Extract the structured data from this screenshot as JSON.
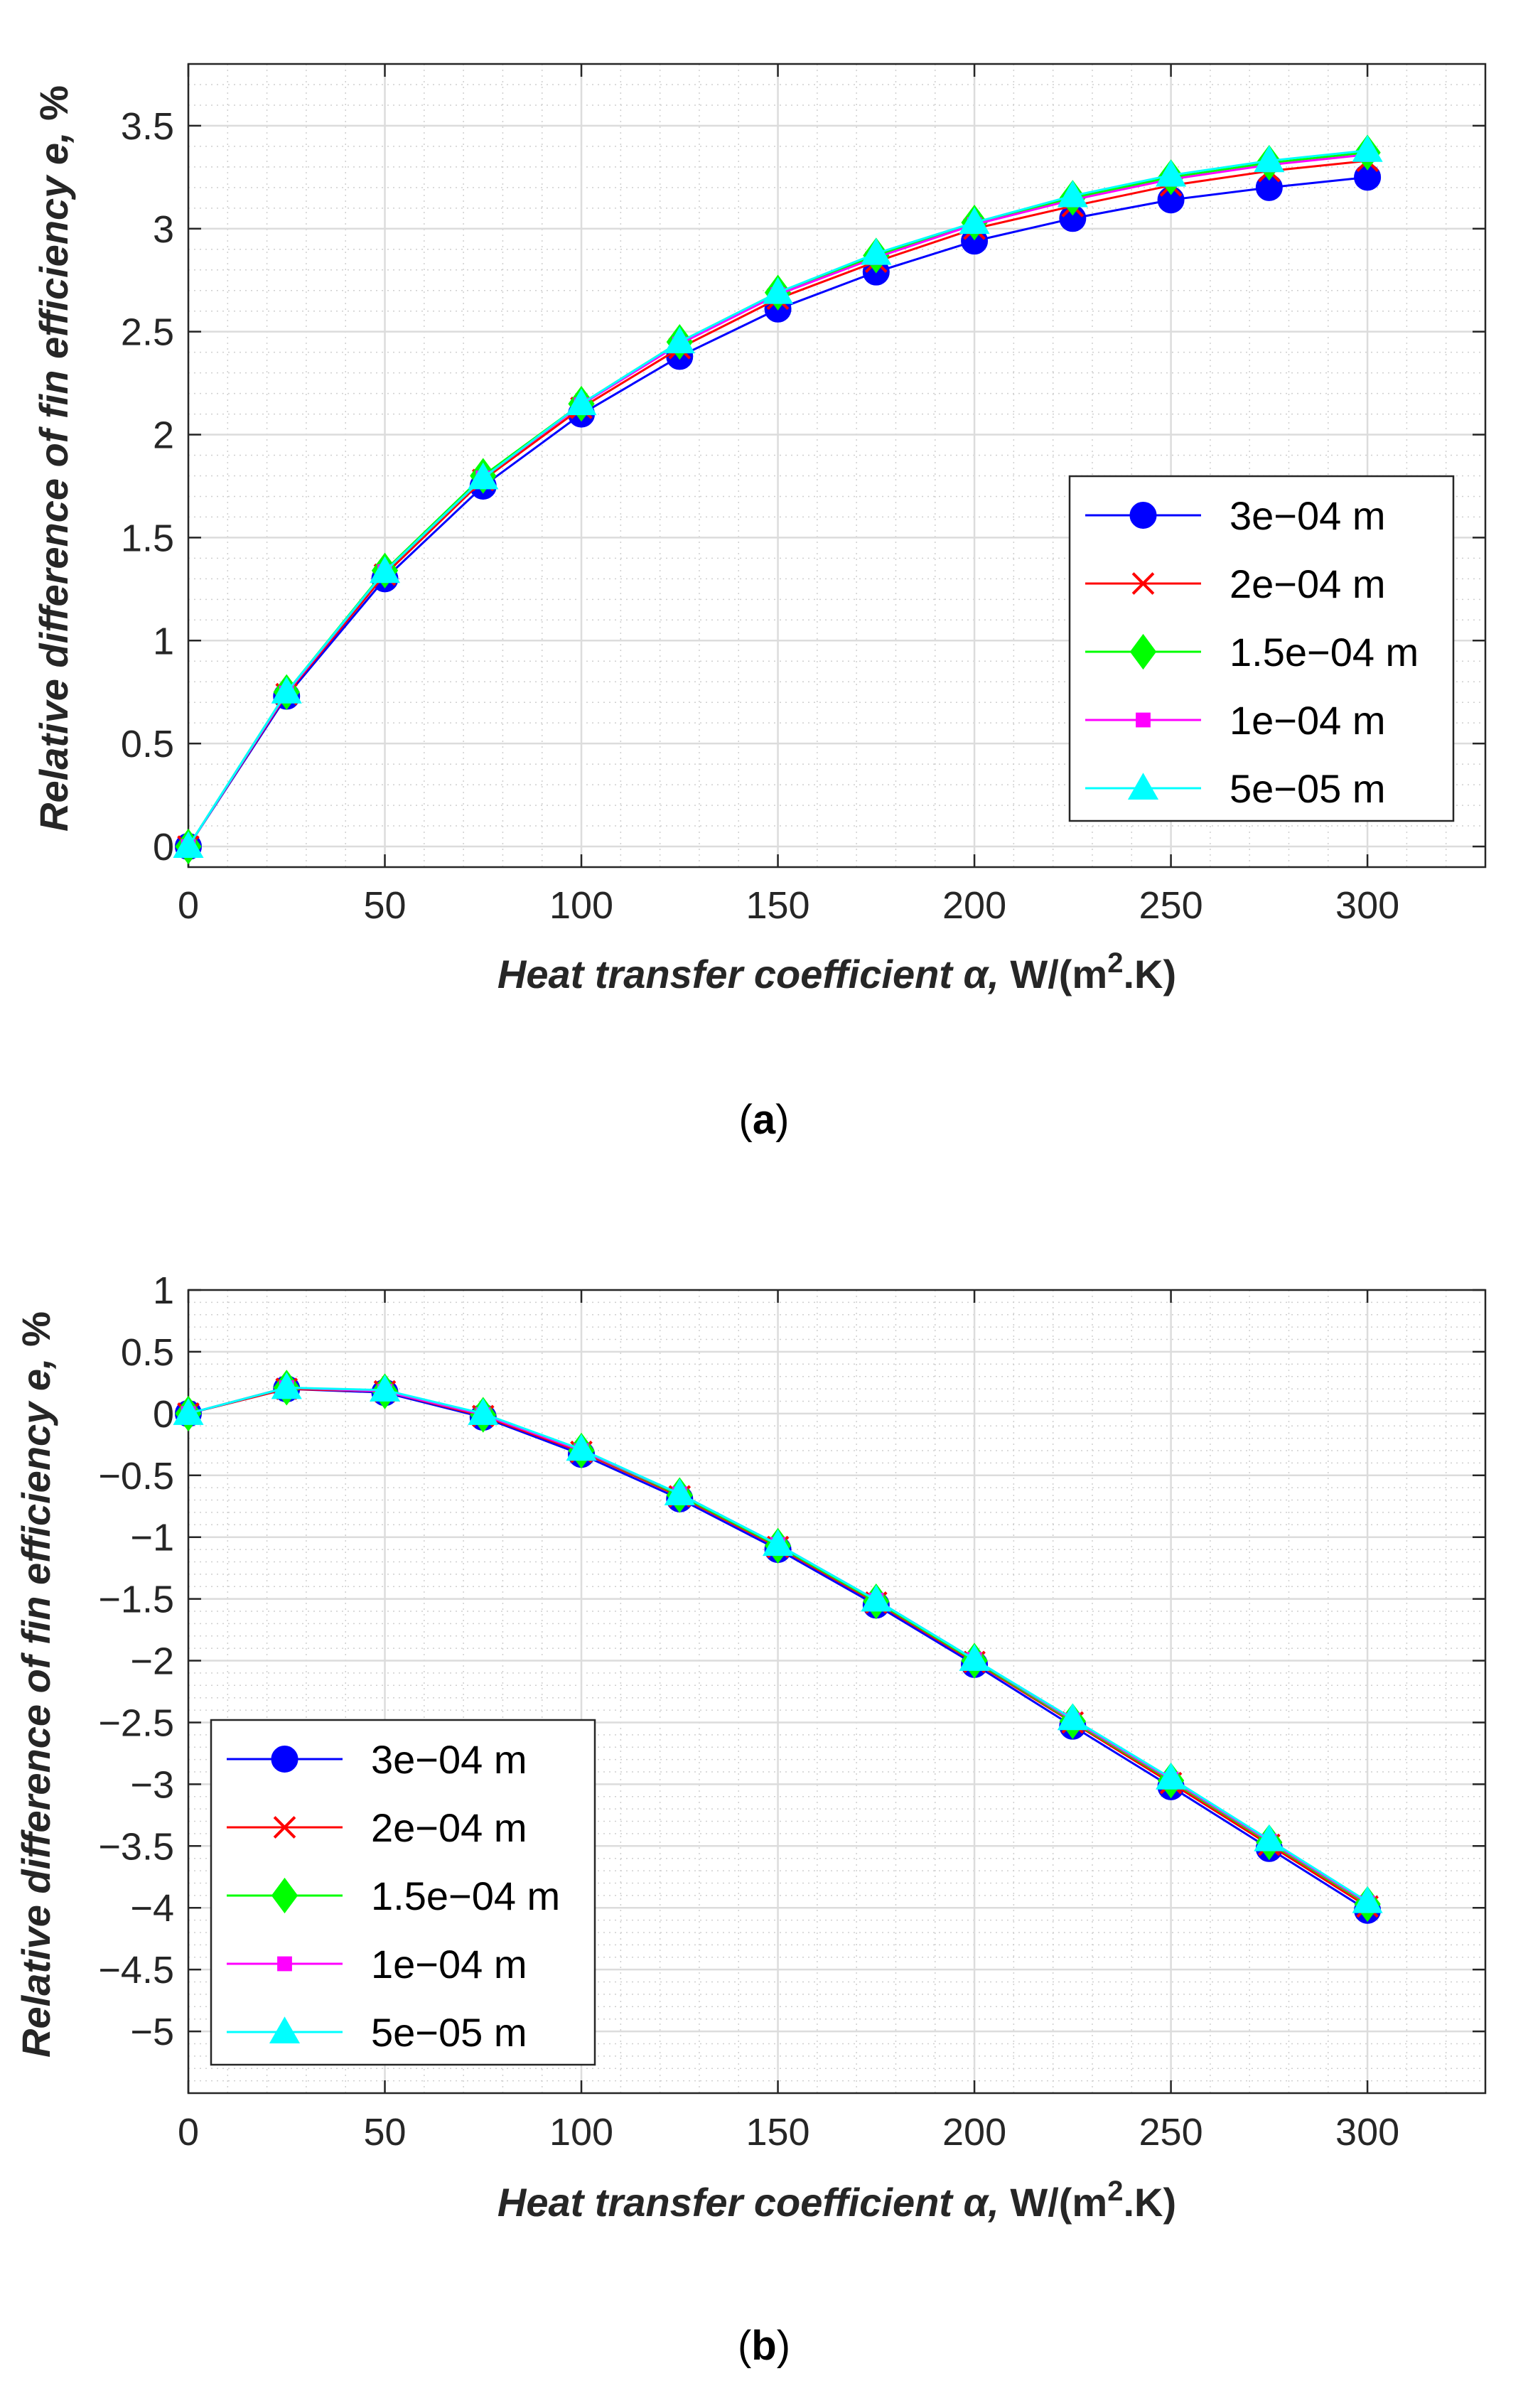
{
  "chart_data": [
    {
      "type": "line",
      "panel": "a",
      "caption_letter": "a",
      "x": [
        0,
        25,
        50,
        75,
        100,
        125,
        150,
        175,
        200,
        225,
        250,
        275,
        300
      ],
      "xlim": [
        0,
        330
      ],
      "ylim": [
        -0.1,
        3.8
      ],
      "xticks": [
        0,
        50,
        100,
        150,
        200,
        250,
        300
      ],
      "xtick_labels": [
        "0",
        "50",
        "100",
        "150",
        "200",
        "250",
        "300"
      ],
      "yticks": [
        0,
        0.5,
        1,
        1.5,
        2,
        2.5,
        3,
        3.5
      ],
      "ytick_labels": [
        "0",
        "0.5",
        "1",
        "1.5",
        "2",
        "2.5",
        "3",
        "3.5"
      ],
      "xlabel": {
        "italic": "Heat transfer coefficient α,",
        "bold": " W/(m",
        "sup": "2",
        "tail": ".K)"
      },
      "ylabel": {
        "italic": "Relative difference of fin efficiency e,",
        "bold": " %"
      },
      "grid": true,
      "minor_grid": true,
      "legend_position": "right",
      "series": [
        {
          "name": "3e−04 m",
          "color": "#0000ff",
          "marker": "circle",
          "values": [
            0,
            0.73,
            1.3,
            1.75,
            2.1,
            2.38,
            2.61,
            2.79,
            2.94,
            3.05,
            3.14,
            3.2,
            3.25
          ]
        },
        {
          "name": "2e−04 m",
          "color": "#ff0000",
          "marker": "x",
          "values": [
            0,
            0.74,
            1.32,
            1.78,
            2.13,
            2.42,
            2.66,
            2.84,
            3.0,
            3.11,
            3.21,
            3.28,
            3.33
          ]
        },
        {
          "name": "1.5e−04 m",
          "color": "#00ff00",
          "marker": "diamond",
          "values": [
            0,
            0.75,
            1.34,
            1.8,
            2.15,
            2.45,
            2.69,
            2.87,
            3.03,
            3.15,
            3.25,
            3.32,
            3.37
          ]
        },
        {
          "name": "1e−04 m",
          "color": "#ff00ff",
          "marker": "square",
          "values": [
            0,
            0.745,
            1.335,
            1.79,
            2.145,
            2.44,
            2.68,
            2.86,
            3.02,
            3.14,
            3.24,
            3.31,
            3.36
          ]
        },
        {
          "name": "5e−05 m",
          "color": "#00ffff",
          "marker": "triangle",
          "values": [
            0,
            0.75,
            1.335,
            1.79,
            2.15,
            2.45,
            2.69,
            2.88,
            3.03,
            3.16,
            3.26,
            3.33,
            3.38
          ]
        }
      ]
    },
    {
      "type": "line",
      "panel": "b",
      "caption_letter": "b",
      "x": [
        0,
        25,
        50,
        75,
        100,
        125,
        150,
        175,
        200,
        225,
        250,
        275,
        300
      ],
      "xlim": [
        0,
        330
      ],
      "ylim": [
        -5.5,
        1.0
      ],
      "xticks": [
        0,
        50,
        100,
        150,
        200,
        250,
        300
      ],
      "xtick_labels": [
        "0",
        "50",
        "100",
        "150",
        "200",
        "250",
        "300"
      ],
      "yticks": [
        1,
        0.5,
        0,
        -0.5,
        -1,
        -1.5,
        -2,
        -2.5,
        -3,
        -3.5,
        -4,
        -4.5,
        -5
      ],
      "ytick_labels": [
        "1",
        "0.5",
        "0",
        "−0.5",
        "−1",
        "−1.5",
        "−2",
        "−2.5",
        "−3",
        "−3.5",
        "−4",
        "−4.5",
        "−5"
      ],
      "xlabel": {
        "italic": "Heat transfer coefficient α,",
        "bold": " W/(m",
        "sup": "2",
        "tail": ".K)"
      },
      "ylabel": {
        "italic": "Relative difference of fin efficiency e,",
        "bold": " %"
      },
      "grid": true,
      "minor_grid": true,
      "legend_position": "bottom-left",
      "series": [
        {
          "name": "3e−04 m",
          "color": "#0000ff",
          "marker": "circle",
          "values": [
            0,
            0.2,
            0.17,
            -0.03,
            -0.33,
            -0.69,
            -1.1,
            -1.55,
            -2.03,
            -2.53,
            -3.02,
            -3.52,
            -4.02
          ]
        },
        {
          "name": "2e−04 m",
          "color": "#ff0000",
          "marker": "x",
          "values": [
            0,
            0.2,
            0.18,
            -0.02,
            -0.31,
            -0.67,
            -1.08,
            -1.53,
            -2.01,
            -2.5,
            -2.99,
            -3.49,
            -3.99
          ]
        },
        {
          "name": "1.5e−04 m",
          "color": "#00ff00",
          "marker": "diamond",
          "values": [
            0,
            0.21,
            0.18,
            -0.01,
            -0.3,
            -0.66,
            -1.07,
            -1.52,
            -2.0,
            -2.49,
            -2.97,
            -3.47,
            -3.97
          ]
        },
        {
          "name": "1e−04 m",
          "color": "#ff00ff",
          "marker": "square",
          "values": [
            0,
            0.21,
            0.18,
            -0.01,
            -0.3,
            -0.65,
            -1.06,
            -1.51,
            -1.99,
            -2.48,
            -2.96,
            -3.46,
            -3.96
          ]
        },
        {
          "name": "5e−05 m",
          "color": "#00ffff",
          "marker": "triangle",
          "values": [
            0,
            0.21,
            0.19,
            0.0,
            -0.29,
            -0.65,
            -1.06,
            -1.51,
            -1.99,
            -2.47,
            -2.95,
            -3.45,
            -3.95
          ]
        }
      ]
    }
  ]
}
